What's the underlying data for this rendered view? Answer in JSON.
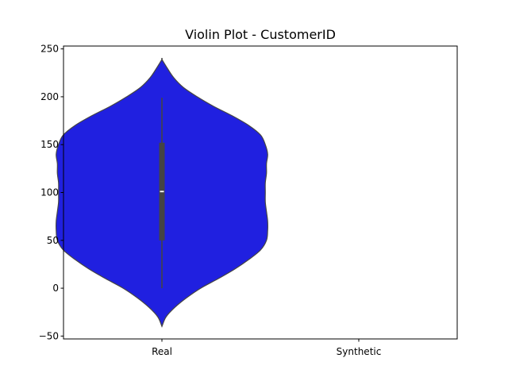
{
  "chart_data": {
    "type": "violin",
    "title": "Violin Plot - CustomerID",
    "xlabel": "",
    "ylabel": "",
    "categories": [
      "Real",
      "Synthetic"
    ],
    "ylim": [
      -53,
      253
    ],
    "y_ticks": [
      -50,
      0,
      50,
      100,
      150,
      200,
      250
    ],
    "grid": false,
    "series": [
      {
        "category": "Real",
        "color": "#2020e0",
        "violin_range": [
          -40,
          239
        ],
        "density_profile": [
          {
            "y": -40,
            "half_width": 0.0
          },
          {
            "y": -30,
            "half_width": 0.035
          },
          {
            "y": -20,
            "half_width": 0.11
          },
          {
            "y": -10,
            "half_width": 0.21
          },
          {
            "y": 0,
            "half_width": 0.33
          },
          {
            "y": 10,
            "half_width": 0.48
          },
          {
            "y": 20,
            "half_width": 0.62
          },
          {
            "y": 30,
            "half_width": 0.74
          },
          {
            "y": 40,
            "half_width": 0.84
          },
          {
            "y": 50,
            "half_width": 0.89
          },
          {
            "y": 60,
            "half_width": 0.9
          },
          {
            "y": 70,
            "half_width": 0.9
          },
          {
            "y": 80,
            "half_width": 0.89
          },
          {
            "y": 90,
            "half_width": 0.88
          },
          {
            "y": 100,
            "half_width": 0.88
          },
          {
            "y": 110,
            "half_width": 0.88
          },
          {
            "y": 120,
            "half_width": 0.89
          },
          {
            "y": 130,
            "half_width": 0.89
          },
          {
            "y": 140,
            "half_width": 0.9
          },
          {
            "y": 150,
            "half_width": 0.88
          },
          {
            "y": 160,
            "half_width": 0.84
          },
          {
            "y": 170,
            "half_width": 0.74
          },
          {
            "y": 180,
            "half_width": 0.6
          },
          {
            "y": 190,
            "half_width": 0.44
          },
          {
            "y": 200,
            "half_width": 0.3
          },
          {
            "y": 210,
            "half_width": 0.18
          },
          {
            "y": 220,
            "half_width": 0.1
          },
          {
            "y": 230,
            "half_width": 0.045
          },
          {
            "y": 239,
            "half_width": 0.0
          }
        ],
        "min": 0,
        "q1": 50,
        "median": 101,
        "q3": 152,
        "max": 199
      },
      {
        "category": "Synthetic",
        "color": "#2020e0",
        "values": []
      }
    ]
  }
}
